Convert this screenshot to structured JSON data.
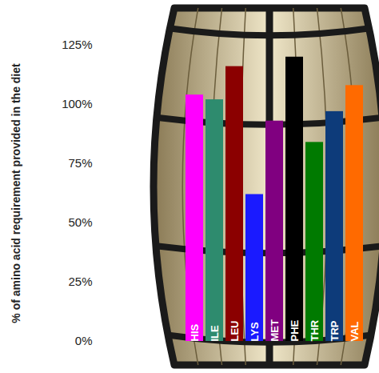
{
  "chart_data": {
    "type": "bar",
    "y_label": "% of amino acid requirement provided in the diet",
    "categories": [
      "HIS",
      "ILE",
      "LEU",
      "LYS",
      "MET",
      "PHE",
      "THR",
      "TRP",
      "VAL"
    ],
    "values": [
      104,
      102,
      116,
      62,
      93,
      120,
      84,
      97,
      108
    ],
    "colors": [
      "#ff00ff",
      "#2e8b6e",
      "#8b0000",
      "#1a1aff",
      "#800080",
      "#000000",
      "#007a00",
      "#0d3b7a",
      "#ff6a00"
    ],
    "ylim": [
      0,
      125
    ],
    "yticks": [
      {
        "value": 0,
        "label": "0%"
      },
      {
        "value": 25,
        "label": "25%"
      },
      {
        "value": 50,
        "label": "50%"
      },
      {
        "value": 75,
        "label": "75%"
      },
      {
        "value": 100,
        "label": "100%"
      },
      {
        "value": 125,
        "label": "125%"
      }
    ],
    "tick_labels": "y",
    "data_labels": false
  }
}
